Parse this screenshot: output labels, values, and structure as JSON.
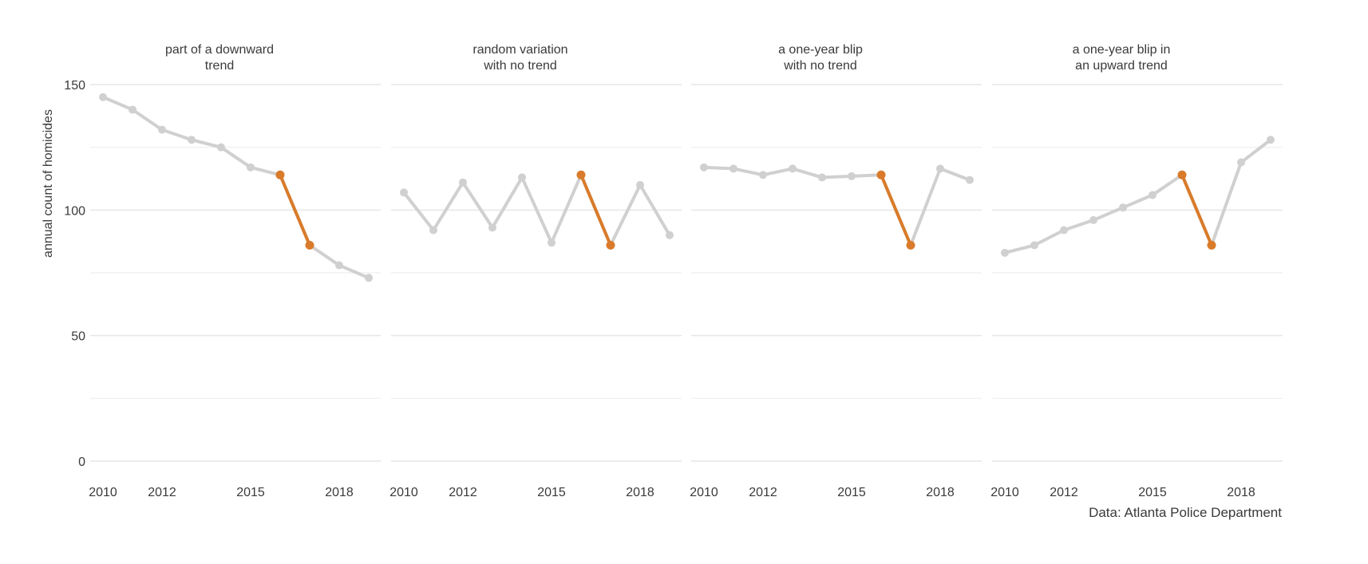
{
  "chart_data": {
    "type": "line",
    "layout": "small-multiples",
    "ylabel": "annual count of homicides",
    "ylim": [
      0,
      150
    ],
    "yticks": [
      0,
      50,
      100,
      150
    ],
    "xticks": [
      2010,
      2012,
      2015,
      2018
    ],
    "grid": true,
    "source": "Data: Atlanta Police Department",
    "colors": {
      "line": "#d0d0d0",
      "highlight": "#d97b2a",
      "grid": "#ebebeb",
      "text": "#3a3a3a"
    },
    "highlight_x": [
      2016,
      2017
    ],
    "panels": [
      {
        "title": [
          "part of a downward",
          "trend"
        ],
        "x": [
          2010,
          2011,
          2012,
          2013,
          2014,
          2015,
          2016,
          2017,
          2018,
          2019
        ],
        "y": [
          145,
          140,
          132,
          128,
          125,
          117,
          114,
          86,
          78,
          73
        ]
      },
      {
        "title": [
          "random variation",
          "with no trend"
        ],
        "x": [
          2010,
          2011,
          2012,
          2013,
          2014,
          2015,
          2016,
          2017,
          2018,
          2019
        ],
        "y": [
          107,
          92,
          111,
          93,
          113,
          87,
          114,
          86,
          110,
          90
        ]
      },
      {
        "title": [
          "a one-year blip",
          "with no trend"
        ],
        "x": [
          2010,
          2011,
          2012,
          2013,
          2014,
          2015,
          2016,
          2017,
          2018,
          2019
        ],
        "y": [
          117,
          116.5,
          114,
          116.5,
          113,
          113.5,
          114,
          86,
          116.5,
          112
        ]
      },
      {
        "title": [
          "a one-year blip in",
          "an upward trend"
        ],
        "x": [
          2010,
          2011,
          2012,
          2013,
          2014,
          2015,
          2016,
          2017,
          2018,
          2019
        ],
        "y": [
          83,
          86,
          92,
          96,
          101,
          106,
          114,
          86,
          119,
          128
        ]
      }
    ]
  }
}
